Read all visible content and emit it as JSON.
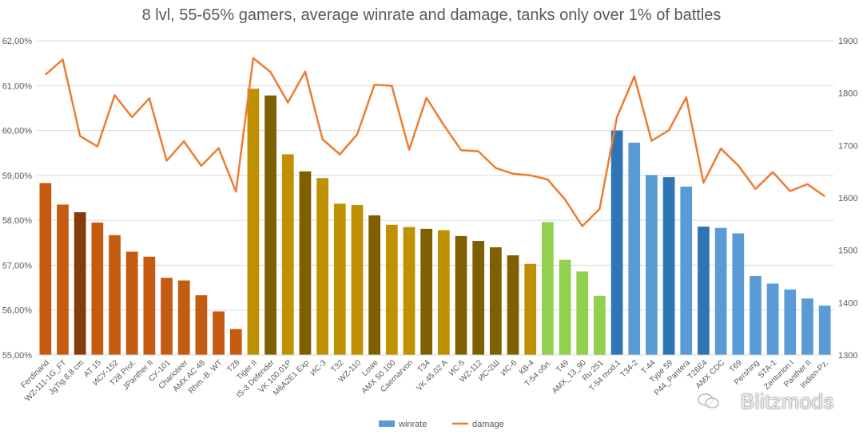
{
  "chart_data": {
    "type": "bar",
    "title": "8 lvl, 55-65% gamers, average winrate and damage, tanks only over 1% of battles",
    "categories": [
      "Ferdinand",
      "WZ-111-1G_FT",
      "JgTig.8,8 cm",
      "AT 15",
      "ИСУ-152",
      "T28 Prot.",
      "JPanther II",
      "СУ-101",
      "Charioteer",
      "AMX AC 48",
      "Rhm.-B. WT",
      "T28",
      "Tiger II",
      "IS-3 Defender",
      "VK 100.01P",
      "M6A2E1 Exp",
      "ИС-3",
      "T32",
      "WZ-110",
      "Lowe",
      "AMX 50 100",
      "Caernarvon",
      "T34",
      "VK 45.02 A",
      "ИС-5",
      "WZ-112",
      "ИС-2Ш",
      "ИС-6",
      "КВ-4",
      "T-54 обл.",
      "T49",
      "AMX_13_90",
      "Ru 251",
      "T-54 mod.1",
      "T34-2",
      "T-44",
      "Type 59",
      "P44_Pantera",
      "T26E4",
      "AMX CDC",
      "T69",
      "Pershing",
      "STA-1",
      "Zenturion I",
      "Panther II",
      "Indien-Pz."
    ],
    "series": [
      {
        "name": "winrate",
        "axis": "left",
        "values": [
          58.83,
          58.35,
          58.18,
          57.95,
          57.67,
          57.3,
          57.19,
          56.72,
          56.66,
          56.33,
          55.97,
          55.58,
          60.93,
          60.78,
          59.47,
          59.09,
          58.94,
          58.37,
          58.34,
          58.11,
          57.9,
          57.85,
          57.81,
          57.78,
          57.65,
          57.54,
          57.4,
          57.22,
          57.03,
          57.96,
          57.12,
          56.86,
          56.32,
          60.0,
          59.73,
          59.01,
          58.96,
          58.75,
          57.86,
          57.83,
          57.71,
          56.76,
          56.59,
          56.46,
          56.26,
          56.1
        ]
      },
      {
        "name": "damage",
        "axis": "right",
        "values": [
          1835,
          1864,
          1718,
          1698,
          1796,
          1754,
          1790,
          1671,
          1708,
          1661,
          1695,
          1612,
          1867,
          1840,
          1782,
          1841,
          1712,
          1683,
          1721,
          1816,
          1814,
          1692,
          1791,
          1739,
          1691,
          1689,
          1657,
          1646,
          1643,
          1635,
          1597,
          1546,
          1579,
          1754,
          1832,
          1709,
          1729,
          1792,
          1629,
          1694,
          1662,
          1617,
          1649,
          1613,
          1626,
          1603
        ]
      }
    ],
    "bar_colors": [
      "#c55a11",
      "#c55a11",
      "#843c0c",
      "#c55a11",
      "#c55a11",
      "#c55a11",
      "#c55a11",
      "#c55a11",
      "#c55a11",
      "#c55a11",
      "#c55a11",
      "#c55a11",
      "#bf9000",
      "#7f6000",
      "#bf9000",
      "#7f6000",
      "#bf9000",
      "#bf9000",
      "#bf9000",
      "#7f6000",
      "#bf9000",
      "#bf9000",
      "#7f6000",
      "#bf9000",
      "#7f6000",
      "#7f6000",
      "#7f6000",
      "#7f6000",
      "#bf9000",
      "#92d050",
      "#92d050",
      "#92d050",
      "#92d050",
      "#2e75b6",
      "#5b9bd5",
      "#5b9bd5",
      "#2e75b6",
      "#5b9bd5",
      "#2e75b6",
      "#5b9bd5",
      "#5b9bd5",
      "#5b9bd5",
      "#5b9bd5",
      "#5b9bd5",
      "#5b9bd5",
      "#5b9bd5"
    ],
    "line_color": "#ed7d31",
    "legend_winrate_color": "#5b9bd5",
    "left_axis": {
      "min": 55,
      "max": 62,
      "step": 1,
      "tick_labels": [
        "55,00%",
        "56,00%",
        "57,00%",
        "58,00%",
        "59,00%",
        "60,00%",
        "61,00%",
        "62,00%"
      ]
    },
    "right_axis": {
      "min": 1300,
      "max": 1900,
      "step": 100,
      "tick_labels": [
        "1300",
        "1400",
        "1500",
        "1600",
        "1700",
        "1800",
        "1900"
      ]
    },
    "grid": true,
    "legend_position": "bottom",
    "legend": [
      "winrate",
      "damage"
    ]
  },
  "watermark": {
    "text": "Blitzmods",
    "icon": "wechat-logo-icon"
  }
}
